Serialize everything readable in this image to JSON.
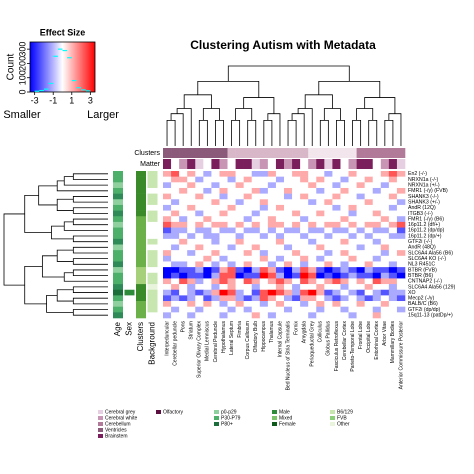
{
  "chart_data": {
    "type": "heatmap",
    "title": "Clustering Autism with Metadata",
    "rows": [
      "En2 (-/-)",
      "NRXN1a (-/-)",
      "NRXN1a (+/-)",
      "FMR1 (-/y) (FVB)",
      "SHANK3 (-/-)",
      "SHANK3 (+/-)",
      "AndR (12Q)",
      "ITGB3 (-/-)",
      "FMR1 (-/y) (B6)",
      "16p11.2 (df/+)",
      "16p11.2 (dp/dp)",
      "16p11.2 (dp/+)",
      "GTF2i (-/-)",
      "AndR (48Q)",
      "SLC6A4 Ala56 (B6)",
      "SLC6A4 KO (-/-)",
      "NL3 R451C",
      "BTBR (FVB)",
      "BTBR (B6)",
      "CNTNAP2 (-/-)",
      "SLC6A4 Ala56 (129)",
      "XO",
      "Mecp2 (-/y)",
      "BALB/C (B6)",
      "GTF2i (dp/dp)",
      "15q11-13 (patDp/+)"
    ],
    "columns": [
      "Interpeduncular",
      "Cerebellar peduncle",
      "Pons",
      "Striatum",
      "Superior Olivary Complex",
      "Medial Lemniscus",
      "Cerebral Peduncle",
      "Hypothalamus",
      "Lateral Septum",
      "Fimbria",
      "Corpus Callosum",
      "Olfactory Bulb",
      "Hippocampus",
      "Thalamus",
      "Internal Capsule",
      "Bed Nucleus of Stria Terminalis",
      "Fornix",
      "Amygdala",
      "Periaqueductal Grey",
      "Colliculus",
      "Globus Pallidus",
      "Fasciculus Retroflexus",
      "Cerebellar Cortex",
      "Parieto-Temporal Lobe",
      "Frontal Lobe",
      "Occipital Lobe",
      "Entorhinal Cortex",
      "Arbor Vitae",
      "Mammillary Bodies",
      "Anterior Commissure Posterior"
    ],
    "values": [
      [
        1,
        2,
        0,
        1,
        0,
        -1,
        0,
        1,
        1,
        0,
        0,
        -1,
        -1,
        1,
        0,
        0,
        1,
        1,
        0,
        0,
        -1,
        0,
        0,
        1,
        0,
        0,
        0,
        1,
        2,
        1
      ],
      [
        0,
        1,
        1,
        0,
        -1,
        0,
        0,
        0,
        -1,
        0,
        1,
        0,
        0,
        0,
        -1,
        0,
        0,
        1,
        0,
        1,
        0,
        0,
        -1,
        0,
        0,
        1,
        0,
        0,
        1,
        0
      ],
      [
        -1,
        0,
        0,
        1,
        0,
        0,
        -1,
        0,
        0,
        1,
        0,
        0,
        0,
        -1,
        0,
        0,
        0,
        0,
        1,
        0,
        0,
        -1,
        0,
        0,
        1,
        0,
        0,
        -1,
        0,
        0
      ],
      [
        0,
        0,
        1,
        0,
        0,
        -1,
        0,
        1,
        0,
        0,
        0,
        1,
        -1,
        0,
        0,
        1,
        0,
        0,
        0,
        -1,
        0,
        0,
        1,
        0,
        0,
        0,
        -1,
        0,
        0,
        1
      ],
      [
        1,
        0,
        0,
        0,
        1,
        0,
        0,
        -1,
        0,
        0,
        1,
        0,
        0,
        0,
        0,
        -1,
        0,
        1,
        0,
        0,
        0,
        1,
        0,
        0,
        -1,
        0,
        0,
        0,
        1,
        0
      ],
      [
        0,
        -1,
        0,
        0,
        0,
        0,
        1,
        0,
        0,
        -1,
        0,
        0,
        1,
        0,
        0,
        0,
        0,
        0,
        -1,
        0,
        1,
        0,
        0,
        0,
        0,
        1,
        0,
        0,
        0,
        -1
      ],
      [
        -1,
        0,
        0,
        1,
        0,
        0,
        0,
        0,
        1,
        0,
        0,
        0,
        -1,
        0,
        1,
        0,
        0,
        0,
        0,
        0,
        0,
        -1,
        0,
        1,
        0,
        0,
        0,
        0,
        -1,
        0
      ],
      [
        0,
        1,
        0,
        0,
        -1,
        0,
        0,
        1,
        0,
        0,
        0,
        -1,
        0,
        0,
        0,
        0,
        1,
        0,
        0,
        1,
        0,
        0,
        0,
        -1,
        0,
        0,
        1,
        0,
        0,
        0
      ],
      [
        1,
        0,
        -1,
        0,
        0,
        1,
        0,
        0,
        0,
        0,
        -1,
        0,
        0,
        1,
        0,
        0,
        0,
        -1,
        0,
        0,
        0,
        0,
        1,
        0,
        0,
        0,
        0,
        1,
        0,
        -1
      ],
      [
        2,
        1,
        1,
        0,
        1,
        0,
        1,
        1,
        0,
        1,
        0,
        1,
        0,
        1,
        1,
        0,
        1,
        0,
        1,
        0,
        1,
        1,
        0,
        1,
        0,
        1,
        1,
        0,
        1,
        2
      ],
      [
        -2,
        -1,
        -1,
        0,
        -1,
        -1,
        0,
        -1,
        -1,
        0,
        -1,
        -1,
        0,
        -1,
        0,
        -1,
        -1,
        0,
        -1,
        -1,
        0,
        -1,
        -1,
        0,
        -1,
        0,
        -1,
        -1,
        0,
        -2
      ],
      [
        -1,
        -1,
        0,
        -1,
        0,
        -1,
        -1,
        0,
        0,
        -1,
        0,
        0,
        -1,
        0,
        -1,
        0,
        0,
        -1,
        0,
        0,
        -1,
        0,
        0,
        -1,
        0,
        -1,
        0,
        0,
        -1,
        -1
      ],
      [
        0,
        0,
        1,
        0,
        0,
        0,
        -1,
        0,
        0,
        1,
        0,
        0,
        0,
        0,
        1,
        0,
        0,
        0,
        -1,
        0,
        0,
        0,
        1,
        0,
        0,
        0,
        -1,
        0,
        0,
        0
      ],
      [
        0,
        -1,
        0,
        0,
        1,
        0,
        0,
        0,
        -1,
        0,
        0,
        1,
        0,
        0,
        0,
        -1,
        0,
        0,
        0,
        1,
        0,
        0,
        0,
        0,
        -1,
        0,
        0,
        1,
        0,
        0
      ],
      [
        1,
        0,
        0,
        -1,
        0,
        0,
        1,
        0,
        0,
        0,
        1,
        0,
        -1,
        0,
        0,
        0,
        1,
        0,
        0,
        0,
        -1,
        0,
        1,
        0,
        0,
        0,
        0,
        -1,
        0,
        1
      ],
      [
        -1,
        0,
        0,
        0,
        0,
        1,
        0,
        -1,
        0,
        0,
        0,
        0,
        1,
        0,
        -1,
        0,
        0,
        1,
        0,
        -1,
        0,
        0,
        0,
        1,
        0,
        0,
        -1,
        0,
        0,
        0
      ],
      [
        0,
        -1,
        -1,
        0,
        1,
        0,
        -1,
        0,
        -1,
        0,
        1,
        0,
        0,
        -1,
        0,
        1,
        0,
        -1,
        0,
        0,
        1,
        0,
        -1,
        0,
        0,
        1,
        0,
        0,
        -1,
        0
      ],
      [
        -3,
        -3,
        -2,
        -2,
        -1,
        -3,
        -2,
        1,
        2,
        -2,
        -3,
        -1,
        2,
        1,
        -2,
        -3,
        -1,
        2,
        1,
        -2,
        -3,
        -2,
        -1,
        -2,
        -3,
        -1,
        -2,
        -2,
        -3,
        -2
      ],
      [
        -3,
        -2,
        -3,
        -2,
        -2,
        -3,
        -1,
        2,
        2,
        -3,
        -2,
        -2,
        3,
        2,
        -1,
        -3,
        -2,
        3,
        2,
        -3,
        -2,
        -3,
        -2,
        -1,
        -2,
        -2,
        -3,
        -1,
        -2,
        -3
      ],
      [
        1,
        0,
        2,
        1,
        -1,
        0,
        1,
        2,
        1,
        0,
        2,
        1,
        0,
        1,
        2,
        1,
        0,
        2,
        1,
        0,
        1,
        2,
        1,
        0,
        1,
        0,
        2,
        1,
        1,
        0
      ],
      [
        0,
        1,
        0,
        -1,
        0,
        0,
        -1,
        0,
        1,
        0,
        0,
        -1,
        0,
        0,
        1,
        0,
        -1,
        0,
        0,
        1,
        0,
        0,
        -1,
        0,
        0,
        1,
        0,
        0,
        -1,
        0
      ],
      [
        -1,
        -2,
        0,
        -1,
        -2,
        -1,
        1,
        3,
        2,
        -1,
        0,
        -2,
        2,
        3,
        2,
        1,
        -1,
        2,
        3,
        1,
        -2,
        -1,
        0,
        -1,
        -2,
        0,
        -1,
        -2,
        -1,
        -1
      ],
      [
        -2,
        -1,
        -2,
        -1,
        0,
        -2,
        -1,
        1,
        1,
        -1,
        -2,
        -1,
        2,
        1,
        0,
        -1,
        -2,
        1,
        1,
        0,
        -1,
        -2,
        -1,
        0,
        -1,
        -2,
        -1,
        0,
        -1,
        -2
      ],
      [
        1,
        0,
        0,
        1,
        0,
        1,
        0,
        -1,
        0,
        1,
        0,
        0,
        -1,
        0,
        1,
        0,
        0,
        -1,
        0,
        1,
        0,
        1,
        0,
        0,
        1,
        0,
        0,
        1,
        0,
        0
      ],
      [
        0,
        -1,
        0,
        0,
        -1,
        0,
        0,
        0,
        -1,
        0,
        -1,
        0,
        0,
        0,
        0,
        -1,
        0,
        0,
        0,
        -1,
        0,
        0,
        -1,
        0,
        0,
        0,
        -1,
        0,
        0,
        -1
      ],
      [
        -1,
        0,
        0,
        -1,
        0,
        0,
        0,
        -1,
        0,
        0,
        0,
        1,
        0,
        -1,
        0,
        0,
        0,
        0,
        -1,
        0,
        0,
        0,
        0,
        -1,
        0,
        0,
        1,
        0,
        0,
        0
      ]
    ],
    "colorscale": {
      "low": "#0000ff",
      "mid": "#ffffff",
      "high": "#ff0000",
      "lim": [
        -3,
        3
      ]
    },
    "column_tracks": [
      {
        "name": "Clusters",
        "colors": [
          "#8b5a7a",
          "#8b5a7a",
          "#8b5a7a",
          "#8b5a7a",
          "#8b5a7a",
          "#8b5a7a",
          "#8b5a7a",
          "#8b5a7a",
          "#d8b8c8",
          "#d8b8c8",
          "#d8b8c8",
          "#d8b8c8",
          "#d8b8c8",
          "#d8b8c8",
          "#d8b8c8",
          "#d8b8c8",
          "#d8b8c8",
          "#d8b8c8",
          "#f2e6ec",
          "#f2e6ec",
          "#f2e6ec",
          "#f2e6ec",
          "#f2e6ec",
          "#f2e6ec",
          "#b07a98",
          "#b07a98",
          "#b07a98",
          "#b07a98",
          "#b07a98",
          "#b07a98"
        ]
      },
      {
        "name": "Matter",
        "colors": [
          "#7a1f5c",
          "#ffffff",
          "#c896b4",
          "#7a1f5c",
          "#e6cfe0",
          "#ffffff",
          "#7a1f5c",
          "#c896b4",
          "#ffffff",
          "#7a1f5c",
          "#7a1f5c",
          "#e6cfe0",
          "#c896b4",
          "#ffffff",
          "#7a1f5c",
          "#c896b4",
          "#7a1f5c",
          "#ffffff",
          "#c896b4",
          "#7a1f5c",
          "#e6cfe0",
          "#7a1f5c",
          "#ffffff",
          "#c896b4",
          "#7a1f5c",
          "#7a1f5c",
          "#ffffff",
          "#c896b4",
          "#7a1f5c",
          "#e6cfe0"
        ]
      }
    ],
    "row_tracks": [
      {
        "name": "Age",
        "colors": [
          "#4caf6a",
          "#4caf6a",
          "#8fd19e",
          "#4caf6a",
          "#2e8b57",
          "#8fd19e",
          "#4caf6a",
          "#2e8b57",
          "#4caf6a",
          "#8fd19e",
          "#4caf6a",
          "#4caf6a",
          "#2e8b57",
          "#8fd19e",
          "#4caf6a",
          "#4caf6a",
          "#2e8b57",
          "#8fd19e",
          "#4caf6a",
          "#4caf6a",
          "#2e8b57",
          "#1b6e3a",
          "#4caf6a",
          "#8fd19e",
          "#4caf6a",
          "#2e8b57"
        ]
      },
      {
        "name": "Sex",
        "colors": [
          "#ffffff",
          "#ffffff",
          "#ffffff",
          "#ffffff",
          "#ffffff",
          "#ffffff",
          "#ffffff",
          "#ffffff",
          "#ffffff",
          "#ffffff",
          "#ffffff",
          "#ffffff",
          "#ffffff",
          "#ffffff",
          "#ffffff",
          "#ffffff",
          "#ffffff",
          "#ffffff",
          "#ffffff",
          "#ffffff",
          "#ffffff",
          "#2e8b3a",
          "#ffffff",
          "#ffffff",
          "#ffffff",
          "#ffffff"
        ]
      },
      {
        "name": "Clusters",
        "colors": [
          "#3a8a2a",
          "#3a8a2a",
          "#3a8a2a",
          "#3a8a2a",
          "#3a8a2a",
          "#3a8a2a",
          "#3a8a2a",
          "#3a8a2a",
          "#6cb04a",
          "#6cb04a",
          "#6cb04a",
          "#6cb04a",
          "#6cb04a",
          "#6cb04a",
          "#6cb04a",
          "#6cb04a",
          "#6cb04a",
          "#a6d17a",
          "#a6d17a",
          "#a6d17a",
          "#3a8a2a",
          "#3a8a2a",
          "#3a8a2a",
          "#6cb04a",
          "#6cb04a",
          "#6cb04a"
        ]
      },
      {
        "name": "Background",
        "colors": [
          "#c8e6b0",
          "#c8e6b0",
          "#c8e6b0",
          "#ffffff",
          "#c8e6b0",
          "#c8e6b0",
          "#ffffff",
          "#c8e6b0",
          "#c8e6b0",
          "#ffffff",
          "#ffffff",
          "#ffffff",
          "#c8e6b0",
          "#ffffff",
          "#c8e6b0",
          "#c8e6b0",
          "#c8e6b0",
          "#ffffff",
          "#c8e6b0",
          "#c8e6b0",
          "#e8f4dc",
          "#c8e6b0",
          "#c8e6b0",
          "#c8e6b0",
          "#c8e6b0",
          "#ffffff"
        ]
      }
    ],
    "color_key": {
      "title": "Effect Size",
      "ylabel": "Count",
      "low_label": "Smaller",
      "high_label": "Larger",
      "xlim": [
        -3.5,
        3.5
      ],
      "xticks": [
        -3,
        -1,
        1,
        3
      ],
      "ylim": [
        0,
        350
      ],
      "yticks": [
        0,
        100,
        200,
        300
      ],
      "hist_color": "#00ffff",
      "bins": [
        -3,
        -2.5,
        -2,
        -1.5,
        -1,
        -0.5,
        0,
        0.5,
        1,
        1.5,
        2,
        2.5,
        3
      ],
      "counts": [
        5,
        10,
        20,
        60,
        250,
        300,
        290,
        240,
        80,
        30,
        15,
        8
      ]
    },
    "legend": [
      {
        "items": [
          {
            "label": "Cerebral grey",
            "color": "#e6cfe0"
          },
          {
            "label": "Cerebral white",
            "color": "#c896b4"
          },
          {
            "label": "Cerebellum",
            "color": "#b07a98"
          },
          {
            "label": "Ventricles",
            "color": "#8b5a7a"
          },
          {
            "label": "Brainstem",
            "color": "#7a1f5c"
          }
        ]
      },
      {
        "items": [
          {
            "label": "Olfactory",
            "color": "#5a0f40"
          }
        ]
      },
      {
        "items": [
          {
            "label": "p0-p29",
            "color": "#8fd19e"
          },
          {
            "label": "P30-P79",
            "color": "#4caf6a"
          },
          {
            "label": "P80+",
            "color": "#1b6e3a"
          }
        ]
      },
      {
        "items": [
          {
            "label": "Male",
            "color": "#2e8b3a"
          },
          {
            "label": "Mixed",
            "color": "#7cc46a"
          },
          {
            "label": "Female",
            "color": "#0d5a1a"
          }
        ]
      },
      {
        "items": [
          {
            "label": "B6/129",
            "color": "#c8e6b0"
          },
          {
            "label": "FVB",
            "color": "#8ccf7a"
          },
          {
            "label": "Other",
            "color": "#e8f4dc"
          }
        ]
      }
    ]
  }
}
